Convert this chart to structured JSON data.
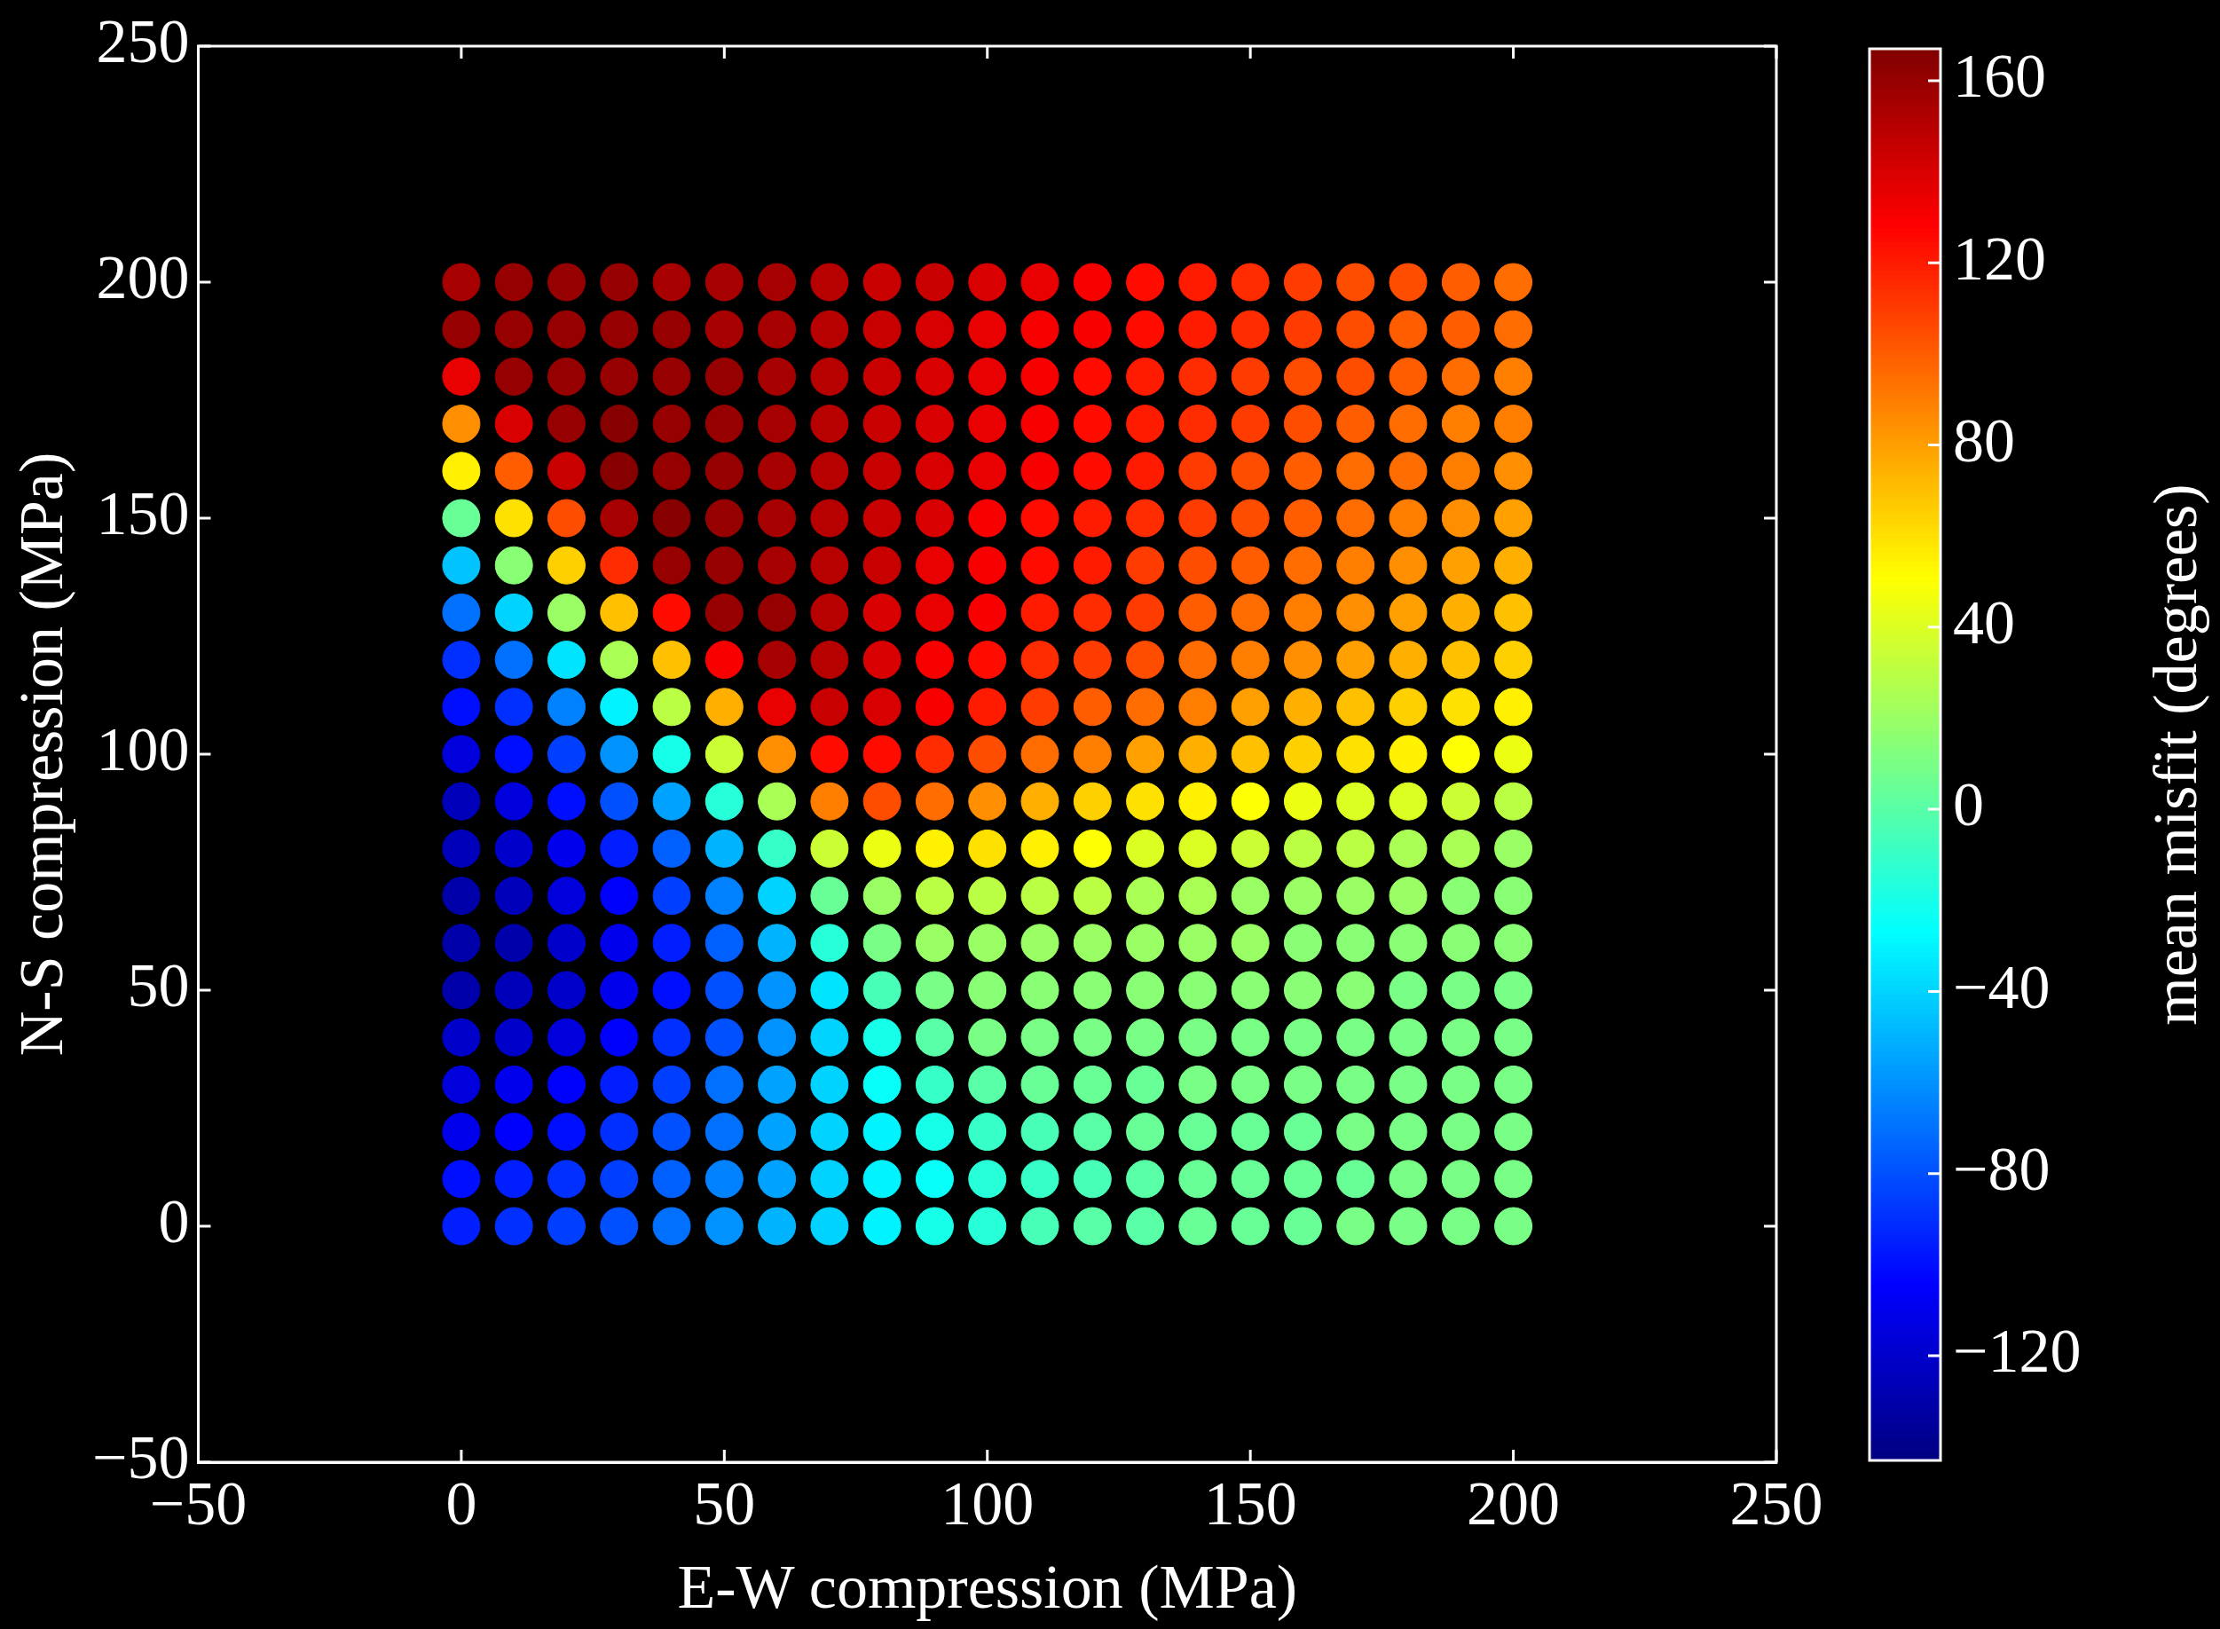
{
  "chart_data": {
    "type": "scatter",
    "xlabel": "E-W compression (MPa)",
    "ylabel": "N-S compression (MPa)",
    "clabel": "mean misfit (degrees)",
    "xlim": [
      -50,
      250
    ],
    "xticks": [
      -50,
      0,
      50,
      100,
      150,
      200,
      250
    ],
    "ylim": [
      -50,
      250
    ],
    "yticks": [
      -50,
      0,
      50,
      100,
      150,
      200,
      250
    ],
    "clim": [
      -143,
      167
    ],
    "cticks": [
      -120,
      -80,
      -40,
      0,
      40,
      80,
      120,
      160
    ],
    "marker": "circle",
    "grid": false,
    "legend": false,
    "series": [
      {
        "x": [
          0,
          10,
          20,
          30,
          40,
          50,
          60,
          70,
          80,
          90,
          100,
          110,
          120,
          130,
          140,
          150,
          160,
          170,
          180,
          190,
          200
        ],
        "values": [
          200,
          200,
          200,
          200,
          200,
          200,
          200,
          200,
          200,
          200,
          200,
          200,
          200,
          200,
          200,
          200,
          200,
          200,
          200,
          200,
          200
        ],
        "cvalues": [
          155,
          160,
          160,
          160,
          155,
          155,
          155,
          150,
          145,
          145,
          140,
          135,
          130,
          125,
          120,
          115,
          110,
          105,
          105,
          100,
          95
        ],
        "colors": [
          "#a70000",
          "#970000",
          "#970000",
          "#970000",
          "#a70000",
          "#a70000",
          "#a70000",
          "#b70000",
          "#c80000",
          "#c80000",
          "#d80000",
          "#e90000",
          "#f90000",
          "#ff0b00",
          "#ff1b00",
          "#ff2c00",
          "#ff3c00",
          "#ff4d00",
          "#ff4d00",
          "#ff5d00",
          "#ff6d00"
        ]
      },
      {
        "x": [
          0,
          10,
          20,
          30,
          40,
          50,
          60,
          70,
          80,
          90,
          100,
          110,
          120,
          130,
          140,
          150,
          160,
          170,
          180,
          190,
          200
        ],
        "values": [
          190,
          190,
          190,
          190,
          190,
          190,
          190,
          190,
          190,
          190,
          190,
          190,
          190,
          190,
          190,
          190,
          190,
          190,
          190,
          190,
          190
        ],
        "cvalues": [
          160,
          160,
          160,
          160,
          160,
          155,
          155,
          150,
          145,
          140,
          135,
          130,
          130,
          125,
          120,
          115,
          110,
          105,
          100,
          100,
          95
        ],
        "colors": [
          "#970000",
          "#970000",
          "#970000",
          "#970000",
          "#970000",
          "#a70000",
          "#a70000",
          "#b70000",
          "#c80000",
          "#d80000",
          "#e90000",
          "#f90000",
          "#f90000",
          "#ff0b00",
          "#ff1b00",
          "#ff2c00",
          "#ff3c00",
          "#ff4d00",
          "#ff5d00",
          "#ff5d00",
          "#ff6d00"
        ]
      },
      {
        "x": [
          0,
          10,
          20,
          30,
          40,
          50,
          60,
          70,
          80,
          90,
          100,
          110,
          120,
          130,
          140,
          150,
          160,
          170,
          180,
          190,
          200
        ],
        "values": [
          180,
          180,
          180,
          180,
          180,
          180,
          180,
          180,
          180,
          180,
          180,
          180,
          180,
          180,
          180,
          180,
          180,
          180,
          180,
          180,
          180
        ],
        "cvalues": [
          135,
          160,
          160,
          160,
          160,
          160,
          155,
          150,
          145,
          140,
          135,
          130,
          125,
          120,
          115,
          110,
          105,
          105,
          100,
          95,
          90
        ],
        "colors": [
          "#e90000",
          "#970000",
          "#970000",
          "#970000",
          "#970000",
          "#970000",
          "#a70000",
          "#b70000",
          "#c80000",
          "#d80000",
          "#e90000",
          "#f90000",
          "#ff0b00",
          "#ff1b00",
          "#ff2c00",
          "#ff3c00",
          "#ff4d00",
          "#ff4d00",
          "#ff5d00",
          "#ff6d00",
          "#ff7e00"
        ]
      },
      {
        "x": [
          0,
          10,
          20,
          30,
          40,
          50,
          60,
          70,
          80,
          90,
          100,
          110,
          120,
          130,
          140,
          150,
          160,
          170,
          180,
          190,
          200
        ],
        "values": [
          170,
          170,
          170,
          170,
          170,
          170,
          170,
          170,
          170,
          170,
          170,
          170,
          170,
          170,
          170,
          170,
          170,
          170,
          170,
          170,
          170
        ],
        "cvalues": [
          85,
          140,
          160,
          165,
          160,
          160,
          155,
          150,
          145,
          140,
          135,
          130,
          125,
          120,
          115,
          110,
          105,
          100,
          95,
          90,
          90
        ],
        "colors": [
          "#ff8e00",
          "#d80000",
          "#970000",
          "#860000",
          "#970000",
          "#970000",
          "#a70000",
          "#b70000",
          "#c80000",
          "#d80000",
          "#e90000",
          "#f90000",
          "#ff0b00",
          "#ff1b00",
          "#ff2c00",
          "#ff3c00",
          "#ff4d00",
          "#ff5d00",
          "#ff6d00",
          "#ff7e00",
          "#ff7e00"
        ]
      },
      {
        "x": [
          0,
          10,
          20,
          30,
          40,
          50,
          60,
          70,
          80,
          90,
          100,
          110,
          120,
          130,
          140,
          150,
          160,
          170,
          180,
          190,
          200
        ],
        "values": [
          160,
          160,
          160,
          160,
          160,
          160,
          160,
          160,
          160,
          160,
          160,
          160,
          160,
          160,
          160,
          160,
          160,
          160,
          160,
          160,
          160
        ],
        "cvalues": [
          55,
          100,
          145,
          165,
          160,
          160,
          155,
          150,
          145,
          140,
          135,
          130,
          125,
          120,
          110,
          105,
          100,
          95,
          95,
          90,
          85
        ],
        "colors": [
          "#fff100",
          "#ff5d00",
          "#c80000",
          "#860000",
          "#970000",
          "#970000",
          "#a70000",
          "#b70000",
          "#c80000",
          "#d80000",
          "#e90000",
          "#f90000",
          "#ff0b00",
          "#ff1b00",
          "#ff3c00",
          "#ff4d00",
          "#ff5d00",
          "#ff6d00",
          "#ff6d00",
          "#ff7e00",
          "#ff8e00"
        ]
      },
      {
        "x": [
          0,
          10,
          20,
          30,
          40,
          50,
          60,
          70,
          80,
          90,
          100,
          110,
          120,
          130,
          140,
          150,
          160,
          170,
          180,
          190,
          200
        ],
        "values": [
          150,
          150,
          150,
          150,
          150,
          150,
          150,
          150,
          150,
          150,
          150,
          150,
          150,
          150,
          150,
          150,
          150,
          150,
          150,
          150,
          150
        ],
        "cvalues": [
          5,
          60,
          105,
          155,
          165,
          160,
          155,
          150,
          145,
          140,
          130,
          125,
          120,
          115,
          110,
          105,
          100,
          95,
          90,
          85,
          80
        ],
        "colors": [
          "#68ff97",
          "#ffe100",
          "#ff4d00",
          "#a70000",
          "#860000",
          "#970000",
          "#a70000",
          "#b70000",
          "#c80000",
          "#d80000",
          "#f90000",
          "#ff0b00",
          "#ff1b00",
          "#ff2c00",
          "#ff3c00",
          "#ff4d00",
          "#ff5d00",
          "#ff6d00",
          "#ff7e00",
          "#ff8e00",
          "#ff9f00"
        ]
      },
      {
        "x": [
          0,
          10,
          20,
          30,
          40,
          50,
          60,
          70,
          80,
          90,
          100,
          110,
          120,
          130,
          140,
          150,
          160,
          170,
          180,
          190,
          200
        ],
        "values": [
          140,
          140,
          140,
          140,
          140,
          140,
          140,
          140,
          140,
          140,
          140,
          140,
          140,
          140,
          140,
          140,
          140,
          140,
          140,
          140,
          140
        ],
        "cvalues": [
          -45,
          15,
          65,
          115,
          160,
          160,
          155,
          150,
          145,
          135,
          130,
          125,
          120,
          110,
          105,
          100,
          95,
          90,
          85,
          80,
          75
        ],
        "colors": [
          "#00c3ff",
          "#89ff76",
          "#ffd000",
          "#ff2c00",
          "#970000",
          "#970000",
          "#a70000",
          "#b70000",
          "#c80000",
          "#e90000",
          "#f90000",
          "#ff0b00",
          "#ff1b00",
          "#ff3c00",
          "#ff4d00",
          "#ff5d00",
          "#ff6d00",
          "#ff7e00",
          "#ff8e00",
          "#ff9f00",
          "#ffaf00"
        ]
      },
      {
        "x": [
          0,
          10,
          20,
          30,
          40,
          50,
          60,
          70,
          80,
          90,
          100,
          110,
          120,
          130,
          140,
          150,
          160,
          170,
          180,
          190,
          200
        ],
        "values": [
          130,
          130,
          130,
          130,
          130,
          130,
          130,
          130,
          130,
          130,
          130,
          130,
          130,
          130,
          130,
          130,
          130,
          130,
          130,
          130,
          130
        ],
        "cvalues": [
          -70,
          -40,
          20,
          70,
          125,
          160,
          160,
          150,
          140,
          135,
          130,
          120,
          115,
          110,
          100,
          95,
          90,
          85,
          80,
          75,
          70
        ],
        "colors": [
          "#0071ff",
          "#00d3ff",
          "#9aff65",
          "#ffc000",
          "#ff0b00",
          "#970000",
          "#970000",
          "#b70000",
          "#d80000",
          "#e90000",
          "#f90000",
          "#ff1b00",
          "#ff2c00",
          "#ff3c00",
          "#ff5d00",
          "#ff6d00",
          "#ff7e00",
          "#ff8e00",
          "#ff9f00",
          "#ffaf00",
          "#ffc000"
        ]
      },
      {
        "x": [
          0,
          10,
          20,
          30,
          40,
          50,
          60,
          70,
          80,
          90,
          100,
          110,
          120,
          130,
          140,
          150,
          160,
          170,
          180,
          190,
          200
        ],
        "values": [
          120,
          120,
          120,
          120,
          120,
          120,
          120,
          120,
          120,
          120,
          120,
          120,
          120,
          120,
          120,
          120,
          120,
          120,
          120,
          120,
          120
        ],
        "cvalues": [
          -90,
          -70,
          -35,
          25,
          70,
          130,
          155,
          150,
          140,
          130,
          125,
          115,
          110,
          105,
          95,
          90,
          85,
          80,
          75,
          70,
          65
        ],
        "colors": [
          "#002fff",
          "#0071ff",
          "#00e4ff",
          "#aaff55",
          "#ffc000",
          "#f90000",
          "#a70000",
          "#b70000",
          "#d80000",
          "#f90000",
          "#ff0b00",
          "#ff2c00",
          "#ff3c00",
          "#ff4d00",
          "#ff6d00",
          "#ff7e00",
          "#ff8e00",
          "#ff9f00",
          "#ffaf00",
          "#ffc000",
          "#ffd000"
        ]
      },
      {
        "x": [
          0,
          10,
          20,
          30,
          40,
          50,
          60,
          70,
          80,
          90,
          100,
          110,
          120,
          130,
          140,
          150,
          160,
          170,
          180,
          190,
          200
        ],
        "values": [
          110,
          110,
          110,
          110,
          110,
          110,
          110,
          110,
          110,
          110,
          110,
          110,
          110,
          110,
          110,
          110,
          110,
          110,
          110,
          110,
          110
        ],
        "cvalues": [
          -100,
          -90,
          -65,
          -30,
          30,
          75,
          135,
          145,
          140,
          130,
          120,
          110,
          100,
          95,
          90,
          80,
          75,
          70,
          65,
          60,
          55
        ],
        "colors": [
          "#000eff",
          "#002fff",
          "#0081ff",
          "#00f4ff",
          "#bbff44",
          "#ffaf00",
          "#e90000",
          "#c80000",
          "#d80000",
          "#f90000",
          "#ff1b00",
          "#ff3c00",
          "#ff5d00",
          "#ff6d00",
          "#ff7e00",
          "#ff9f00",
          "#ffaf00",
          "#ffc000",
          "#ffd000",
          "#ffe100",
          "#fff100"
        ]
      },
      {
        "x": [
          0,
          10,
          20,
          30,
          40,
          50,
          60,
          70,
          80,
          90,
          100,
          110,
          120,
          130,
          140,
          150,
          160,
          170,
          180,
          190,
          200
        ],
        "values": [
          100,
          100,
          100,
          100,
          100,
          100,
          100,
          100,
          100,
          100,
          100,
          100,
          100,
          100,
          100,
          100,
          100,
          100,
          100,
          100,
          100
        ],
        "cvalues": [
          -115,
          -100,
          -85,
          -60,
          -20,
          35,
          85,
          125,
          125,
          115,
          105,
          95,
          90,
          80,
          75,
          70,
          65,
          60,
          55,
          50,
          45
        ],
        "colors": [
          "#0000dc",
          "#000eff",
          "#003fff",
          "#0092ff",
          "#16ffe9",
          "#cbff34",
          "#ff8e00",
          "#ff0b00",
          "#ff0b00",
          "#ff2c00",
          "#ff4d00",
          "#ff6d00",
          "#ff7e00",
          "#ff9f00",
          "#ffaf00",
          "#ffc000",
          "#ffd000",
          "#ffe100",
          "#fff100",
          "#fdff02",
          "#ecff13"
        ]
      },
      {
        "x": [
          0,
          10,
          20,
          30,
          40,
          50,
          60,
          70,
          80,
          90,
          100,
          110,
          120,
          130,
          140,
          150,
          160,
          170,
          180,
          190,
          200
        ],
        "values": [
          90,
          90,
          90,
          90,
          90,
          90,
          90,
          90,
          90,
          90,
          90,
          90,
          90,
          90,
          90,
          90,
          90,
          90,
          90,
          90,
          90
        ],
        "cvalues": [
          -125,
          -115,
          -100,
          -80,
          -55,
          -15,
          25,
          90,
          105,
          95,
          85,
          75,
          65,
          60,
          55,
          50,
          45,
          40,
          40,
          35,
          30
        ],
        "colors": [
          "#0000bb",
          "#0000dc",
          "#000eff",
          "#0050ff",
          "#00a2ff",
          "#27ffd8",
          "#aaff55",
          "#ff7e00",
          "#ff4d00",
          "#ff6d00",
          "#ff8e00",
          "#ffaf00",
          "#ffd000",
          "#ffe100",
          "#fff100",
          "#fdff02",
          "#ecff13",
          "#dcff23",
          "#dcff23",
          "#cbff34",
          "#bbff44"
        ]
      },
      {
        "x": [
          0,
          10,
          20,
          30,
          40,
          50,
          60,
          70,
          80,
          90,
          100,
          110,
          120,
          130,
          140,
          150,
          160,
          170,
          180,
          190,
          200
        ],
        "values": [
          80,
          80,
          80,
          80,
          80,
          80,
          80,
          80,
          80,
          80,
          80,
          80,
          80,
          80,
          80,
          80,
          80,
          80,
          80,
          80,
          80
        ],
        "cvalues": [
          -125,
          -120,
          -110,
          -95,
          -75,
          -50,
          -10,
          35,
          45,
          55,
          60,
          55,
          50,
          40,
          40,
          35,
          30,
          30,
          25,
          25,
          20
        ],
        "colors": [
          "#0000bb",
          "#0000cb",
          "#0000ec",
          "#001eff",
          "#0060ff",
          "#00b3ff",
          "#37ffc8",
          "#cbff34",
          "#ecff13",
          "#fff100",
          "#ffe100",
          "#fff100",
          "#fdff02",
          "#dcff23",
          "#dcff23",
          "#cbff34",
          "#bbff44",
          "#bbff44",
          "#aaff55",
          "#aaff55",
          "#9aff65"
        ]
      },
      {
        "x": [
          0,
          10,
          20,
          30,
          40,
          50,
          60,
          70,
          80,
          90,
          100,
          110,
          120,
          130,
          140,
          150,
          160,
          170,
          180,
          190,
          200
        ],
        "values": [
          70,
          70,
          70,
          70,
          70,
          70,
          70,
          70,
          70,
          70,
          70,
          70,
          70,
          70,
          70,
          70,
          70,
          70,
          70,
          70,
          70
        ],
        "cvalues": [
          -130,
          -125,
          -115,
          -105,
          -85,
          -65,
          -40,
          5,
          20,
          30,
          30,
          30,
          30,
          25,
          25,
          20,
          20,
          20,
          20,
          15,
          15
        ],
        "colors": [
          "#0000aa",
          "#0000bb",
          "#0000dc",
          "#0000fd",
          "#003fff",
          "#0081ff",
          "#00d3ff",
          "#68ff97",
          "#9aff65",
          "#bbff44",
          "#bbff44",
          "#bbff44",
          "#bbff44",
          "#aaff55",
          "#aaff55",
          "#9aff65",
          "#9aff65",
          "#9aff65",
          "#9aff65",
          "#89ff76",
          "#89ff76"
        ]
      },
      {
        "x": [
          0,
          10,
          20,
          30,
          40,
          50,
          60,
          70,
          80,
          90,
          100,
          110,
          120,
          130,
          140,
          150,
          160,
          170,
          180,
          190,
          200
        ],
        "values": [
          60,
          60,
          60,
          60,
          60,
          60,
          60,
          60,
          60,
          60,
          60,
          60,
          60,
          60,
          60,
          60,
          60,
          60,
          60,
          60,
          60
        ],
        "cvalues": [
          -130,
          -130,
          -120,
          -110,
          -95,
          -75,
          -50,
          -15,
          10,
          20,
          20,
          20,
          20,
          20,
          20,
          20,
          15,
          15,
          15,
          15,
          15
        ],
        "colors": [
          "#0000aa",
          "#0000aa",
          "#0000cb",
          "#0000ec",
          "#001eff",
          "#0060ff",
          "#00b3ff",
          "#27ffd8",
          "#79ff86",
          "#9aff65",
          "#9aff65",
          "#9aff65",
          "#9aff65",
          "#9aff65",
          "#9aff65",
          "#9aff65",
          "#89ff76",
          "#89ff76",
          "#89ff76",
          "#89ff76",
          "#89ff76"
        ]
      },
      {
        "x": [
          0,
          10,
          20,
          30,
          40,
          50,
          60,
          70,
          80,
          90,
          100,
          110,
          120,
          130,
          140,
          150,
          160,
          170,
          180,
          190,
          200
        ],
        "values": [
          50,
          50,
          50,
          50,
          50,
          50,
          50,
          50,
          50,
          50,
          50,
          50,
          50,
          50,
          50,
          50,
          50,
          50,
          50,
          50,
          50
        ],
        "cvalues": [
          -130,
          -125,
          -120,
          -110,
          -100,
          -80,
          -60,
          -35,
          -5,
          10,
          15,
          15,
          15,
          15,
          15,
          15,
          15,
          15,
          10,
          10,
          10
        ],
        "colors": [
          "#0000aa",
          "#0000bb",
          "#0000cb",
          "#0000ec",
          "#000eff",
          "#0050ff",
          "#0092ff",
          "#00e4ff",
          "#48ffb7",
          "#79ff86",
          "#89ff76",
          "#89ff76",
          "#89ff76",
          "#89ff76",
          "#89ff76",
          "#89ff76",
          "#89ff76",
          "#89ff76",
          "#79ff86",
          "#79ff86",
          "#79ff86"
        ]
      },
      {
        "x": [
          0,
          10,
          20,
          30,
          40,
          50,
          60,
          70,
          80,
          90,
          100,
          110,
          120,
          130,
          140,
          150,
          160,
          170,
          180,
          190,
          200
        ],
        "values": [
          40,
          40,
          40,
          40,
          40,
          40,
          40,
          40,
          40,
          40,
          40,
          40,
          40,
          40,
          40,
          40,
          40,
          40,
          40,
          40,
          40
        ],
        "cvalues": [
          -120,
          -120,
          -115,
          -105,
          -90,
          -80,
          -60,
          -40,
          -20,
          0,
          10,
          10,
          10,
          10,
          10,
          10,
          10,
          10,
          10,
          10,
          10
        ],
        "colors": [
          "#0000cb",
          "#0000cb",
          "#0000dc",
          "#0000fd",
          "#002fff",
          "#0050ff",
          "#0092ff",
          "#00d3ff",
          "#16ffe9",
          "#58ffa7",
          "#79ff86",
          "#79ff86",
          "#79ff86",
          "#79ff86",
          "#79ff86",
          "#79ff86",
          "#79ff86",
          "#79ff86",
          "#79ff86",
          "#79ff86",
          "#79ff86"
        ]
      },
      {
        "x": [
          0,
          10,
          20,
          30,
          40,
          50,
          60,
          70,
          80,
          90,
          100,
          110,
          120,
          130,
          140,
          150,
          160,
          170,
          180,
          190,
          200
        ],
        "values": [
          30,
          30,
          30,
          30,
          30,
          30,
          30,
          30,
          30,
          30,
          30,
          30,
          30,
          30,
          30,
          30,
          30,
          30,
          30,
          30,
          30
        ],
        "cvalues": [
          -115,
          -110,
          -105,
          -95,
          -85,
          -70,
          -55,
          -40,
          -25,
          -10,
          0,
          5,
          5,
          5,
          10,
          10,
          10,
          10,
          10,
          10,
          10
        ],
        "colors": [
          "#0000dc",
          "#0000ec",
          "#0000fd",
          "#001eff",
          "#003fff",
          "#0071ff",
          "#00a2ff",
          "#00d3ff",
          "#06fff9",
          "#37ffc8",
          "#58ffa7",
          "#68ff97",
          "#68ff97",
          "#68ff97",
          "#79ff86",
          "#79ff86",
          "#79ff86",
          "#79ff86",
          "#79ff86",
          "#79ff86",
          "#79ff86"
        ]
      },
      {
        "x": [
          0,
          10,
          20,
          30,
          40,
          50,
          60,
          70,
          80,
          90,
          100,
          110,
          120,
          130,
          140,
          150,
          160,
          170,
          180,
          190,
          200
        ],
        "values": [
          20,
          20,
          20,
          20,
          20,
          20,
          20,
          20,
          20,
          20,
          20,
          20,
          20,
          20,
          20,
          20,
          20,
          20,
          20,
          20,
          20
        ],
        "cvalues": [
          -110,
          -105,
          -100,
          -90,
          -80,
          -70,
          -55,
          -40,
          -30,
          -20,
          -10,
          -5,
          0,
          5,
          5,
          5,
          5,
          10,
          10,
          10,
          10
        ],
        "colors": [
          "#0000ec",
          "#0000fd",
          "#000eff",
          "#002fff",
          "#0050ff",
          "#0071ff",
          "#00a2ff",
          "#00d3ff",
          "#00f4ff",
          "#16ffe9",
          "#37ffc8",
          "#48ffb7",
          "#58ffa7",
          "#68ff97",
          "#68ff97",
          "#68ff97",
          "#68ff97",
          "#79ff86",
          "#79ff86",
          "#79ff86",
          "#79ff86"
        ]
      },
      {
        "x": [
          0,
          10,
          20,
          30,
          40,
          50,
          60,
          70,
          80,
          90,
          100,
          110,
          120,
          130,
          140,
          150,
          160,
          170,
          180,
          190,
          200
        ],
        "values": [
          10,
          10,
          10,
          10,
          10,
          10,
          10,
          10,
          10,
          10,
          10,
          10,
          10,
          10,
          10,
          10,
          10,
          10,
          10,
          10,
          10
        ],
        "cvalues": [
          -100,
          -95,
          -90,
          -85,
          -75,
          -65,
          -55,
          -40,
          -30,
          -25,
          -15,
          -10,
          -5,
          0,
          5,
          5,
          5,
          5,
          10,
          10,
          10
        ],
        "colors": [
          "#000eff",
          "#001eff",
          "#002fff",
          "#003fff",
          "#0060ff",
          "#0081ff",
          "#00a2ff",
          "#00d3ff",
          "#00f4ff",
          "#06fff9",
          "#27ffd8",
          "#37ffc8",
          "#48ffb7",
          "#58ffa7",
          "#68ff97",
          "#68ff97",
          "#68ff97",
          "#68ff97",
          "#79ff86",
          "#79ff86",
          "#79ff86"
        ]
      },
      {
        "x": [
          0,
          10,
          20,
          30,
          40,
          50,
          60,
          70,
          80,
          90,
          100,
          110,
          120,
          130,
          140,
          150,
          160,
          170,
          180,
          190,
          200
        ],
        "values": [
          0,
          0,
          0,
          0,
          0,
          0,
          0,
          0,
          0,
          0,
          0,
          0,
          0,
          0,
          0,
          0,
          0,
          0,
          0,
          0,
          0
        ],
        "cvalues": [
          -95,
          -90,
          -85,
          -80,
          -70,
          -60,
          -50,
          -40,
          -30,
          -20,
          -15,
          -5,
          0,
          0,
          5,
          5,
          5,
          10,
          10,
          10,
          10
        ],
        "colors": [
          "#001eff",
          "#002fff",
          "#003fff",
          "#0050ff",
          "#0071ff",
          "#0092ff",
          "#00b3ff",
          "#00d3ff",
          "#00f4ff",
          "#16ffe9",
          "#27ffd8",
          "#48ffb7",
          "#58ffa7",
          "#58ffa7",
          "#68ff97",
          "#68ff97",
          "#68ff97",
          "#79ff86",
          "#79ff86",
          "#79ff86",
          "#79ff86"
        ]
      }
    ]
  }
}
